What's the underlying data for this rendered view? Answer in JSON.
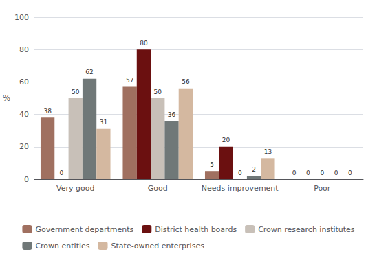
{
  "chart_data": {
    "type": "bar",
    "categories": [
      "Very good",
      "Good",
      "Needs improvement",
      "Poor"
    ],
    "series": [
      {
        "name": "Government departments",
        "color": "#a07060",
        "values": [
          38,
          57,
          5,
          0
        ]
      },
      {
        "name": "District health boards",
        "color": "#6b1010",
        "values": [
          0,
          80,
          20,
          0
        ]
      },
      {
        "name": "Crown research institutes",
        "color": "#c8c0b8",
        "values": [
          50,
          50,
          0,
          0
        ]
      },
      {
        "name": "Crown entities",
        "color": "#707878",
        "values": [
          62,
          36,
          2,
          0
        ]
      },
      {
        "name": "State-owned enterprises",
        "color": "#d4b8a0",
        "values": [
          31,
          56,
          13,
          0
        ]
      }
    ],
    "ylabel": "%",
    "ylim": [
      0,
      100
    ],
    "yticks": [
      0,
      20,
      40,
      60,
      80,
      100
    ],
    "grid": true,
    "data_labels": true,
    "legend": "bottom"
  }
}
